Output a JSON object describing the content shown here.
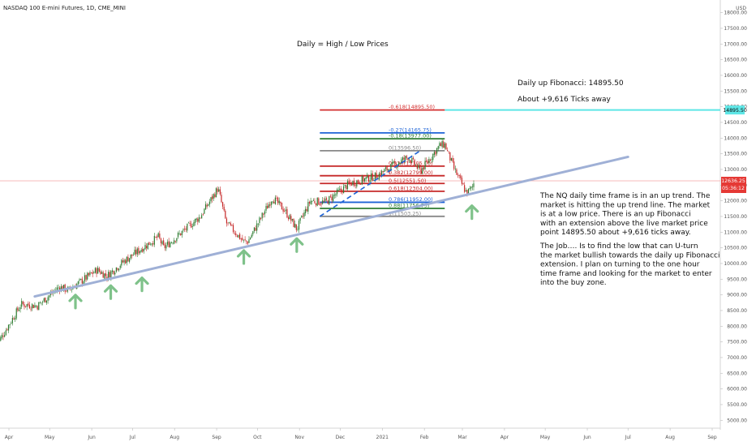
{
  "header": {
    "symbol_title": "NASDAQ 100 E-mini Futures, 1D, CME_MINI"
  },
  "annotations": {
    "daily_title": "Daily = High / Low Prices",
    "fib_target": "Daily up Fibonacci: 14895.50",
    "ticks_away": "About +9,616 Ticks away",
    "paragraph1": [
      "The NQ daily time frame is in an up trend. The",
      "market is hitting the up trend line. The market",
      "is at a low price. There is an up Fibonacci",
      "with an extension above the live market price",
      "point 14895.50 about +9,616 ticks away."
    ],
    "paragraph2": [
      "The Job…. Is to find the low that can U-turn",
      "the market bullish towards the daily up Fibonacci",
      "extension. I plan on turning to the one hour",
      "time frame and looking for the market to enter",
      "into the buy zone."
    ]
  },
  "price_axis": {
    "currency": "USD",
    "badges": {
      "target": "14895.50",
      "last_price": "12636.25",
      "countdown": "05:36:12"
    }
  },
  "colors": {
    "up_candle": "#2e7d32",
    "down_candle": "#c62828",
    "trendline": "#9fb0d6",
    "arrow": "#7fc28a",
    "target_line": "#5ee6e6",
    "last_price_badge": "#e53935"
  },
  "chart_data": {
    "type": "candlestick",
    "title": "NASDAQ 100 E-mini Futures, 1D, CME_MINI",
    "y_unit": "USD",
    "ylim": [
      4800,
      18300
    ],
    "y_ticks": [
      5000,
      5500,
      6000,
      6500,
      7000,
      7500,
      8000,
      8500,
      9000,
      9500,
      10000,
      10500,
      11000,
      11500,
      12000,
      12500,
      13000,
      13500,
      14000,
      14500,
      15000,
      15500,
      16000,
      16500,
      17000,
      17500,
      18000
    ],
    "x_ticks": [
      {
        "label": "Apr",
        "date": "2020-04-01"
      },
      {
        "label": "May",
        "date": "2020-05-01"
      },
      {
        "label": "Jun",
        "date": "2020-06-01"
      },
      {
        "label": "Jul",
        "date": "2020-07-01"
      },
      {
        "label": "Aug",
        "date": "2020-08-01"
      },
      {
        "label": "Sep",
        "date": "2020-09-01"
      },
      {
        "label": "Oct",
        "date": "2020-10-01"
      },
      {
        "label": "Nov",
        "date": "2020-11-01"
      },
      {
        "label": "Dec",
        "date": "2020-12-01"
      },
      {
        "label": "2021",
        "date": "2021-01-01"
      },
      {
        "label": "Feb",
        "date": "2021-02-01"
      },
      {
        "label": "Mar",
        "date": "2021-03-01"
      },
      {
        "label": "Apr",
        "date": "2021-04-01"
      },
      {
        "label": "May",
        "date": "2021-05-01"
      },
      {
        "label": "Jun",
        "date": "2021-06-01"
      },
      {
        "label": "Jul",
        "date": "2021-07-01"
      },
      {
        "label": "Aug",
        "date": "2021-08-01"
      },
      {
        "label": "Sep",
        "date": "2021-09-01"
      }
    ],
    "price_path": [
      {
        "date": "2020-03-23",
        "price": 7400
      },
      {
        "date": "2020-04-10",
        "price": 8700
      },
      {
        "date": "2020-04-22",
        "price": 8650
      },
      {
        "date": "2020-05-08",
        "price": 9250
      },
      {
        "date": "2020-05-15",
        "price": 9150
      },
      {
        "date": "2020-06-05",
        "price": 9800
      },
      {
        "date": "2020-06-12",
        "price": 9600
      },
      {
        "date": "2020-06-24",
        "price": 10050
      },
      {
        "date": "2020-07-02",
        "price": 10300
      },
      {
        "date": "2020-07-20",
        "price": 10850
      },
      {
        "date": "2020-07-24",
        "price": 10500
      },
      {
        "date": "2020-08-20",
        "price": 11500
      },
      {
        "date": "2020-09-02",
        "price": 12400
      },
      {
        "date": "2020-09-08",
        "price": 11300
      },
      {
        "date": "2020-09-21",
        "price": 10700
      },
      {
        "date": "2020-09-24",
        "price": 10700
      },
      {
        "date": "2020-10-12",
        "price": 12100
      },
      {
        "date": "2020-10-21",
        "price": 11700
      },
      {
        "date": "2020-10-30",
        "price": 11100
      },
      {
        "date": "2020-11-09",
        "price": 12000
      },
      {
        "date": "2020-11-20",
        "price": 11950
      },
      {
        "date": "2020-12-08",
        "price": 12550
      },
      {
        "date": "2020-12-28",
        "price": 12800
      },
      {
        "date": "2021-01-08",
        "price": 13100
      },
      {
        "date": "2021-01-20",
        "price": 13400
      },
      {
        "date": "2021-01-29",
        "price": 12950
      },
      {
        "date": "2021-02-12",
        "price": 13750
      },
      {
        "date": "2021-02-16",
        "price": 13800
      },
      {
        "date": "2021-02-23",
        "price": 13000
      },
      {
        "date": "2021-03-04",
        "price": 12250
      },
      {
        "date": "2021-03-08",
        "price": 12400
      },
      {
        "date": "2021-03-10",
        "price": 12636.25
      }
    ],
    "trendline": {
      "start": {
        "date": "2020-04-20",
        "price": 8950
      },
      "end": {
        "date": "2021-07-01",
        "price": 13400
      }
    },
    "last_price": 12636.25,
    "target_price": 14895.5,
    "fibonacci": {
      "levels": [
        {
          "ratio": "-0.618",
          "price": "14895.50",
          "color": "#d32f2f"
        },
        {
          "ratio": "-0.27",
          "price": "14165.75",
          "color": "#1e63d6"
        },
        {
          "ratio": "-0.18",
          "price": "13977.00",
          "color": "#2e7d32"
        },
        {
          "ratio": "0",
          "price": "13596.50",
          "color": "#888888"
        },
        {
          "ratio": "0.236",
          "price": "13105.00",
          "color": "#c62828"
        },
        {
          "ratio": "0.382",
          "price": "12799.00",
          "color": "#c62828"
        },
        {
          "ratio": "0.5",
          "price": "12551.50",
          "color": "#c62828"
        },
        {
          "ratio": "0.618",
          "price": "12304.00",
          "color": "#c62828"
        },
        {
          "ratio": "0.786",
          "price": "11952.00",
          "color": "#1e63d6"
        },
        {
          "ratio": "0.88",
          "price": "11756.75",
          "color": "#2e7d32"
        },
        {
          "ratio": "1",
          "price": "11503.25",
          "color": "#888888"
        }
      ],
      "range": {
        "start": "2020-11-16",
        "end": "2021-02-16"
      }
    },
    "swing_dashes": {
      "start": {
        "date": "2020-11-16",
        "price": 11503.25
      },
      "end": {
        "date": "2021-01-29",
        "price": 13596.5
      }
    },
    "touch_arrows": [
      {
        "date": "2020-05-20",
        "price": 9200
      },
      {
        "date": "2020-06-15",
        "price": 9500
      },
      {
        "date": "2020-07-08",
        "price": 9750
      },
      {
        "date": "2020-09-21",
        "price": 10620
      },
      {
        "date": "2020-10-30",
        "price": 11000
      },
      {
        "date": "2021-03-08",
        "price": 12050
      }
    ]
  }
}
